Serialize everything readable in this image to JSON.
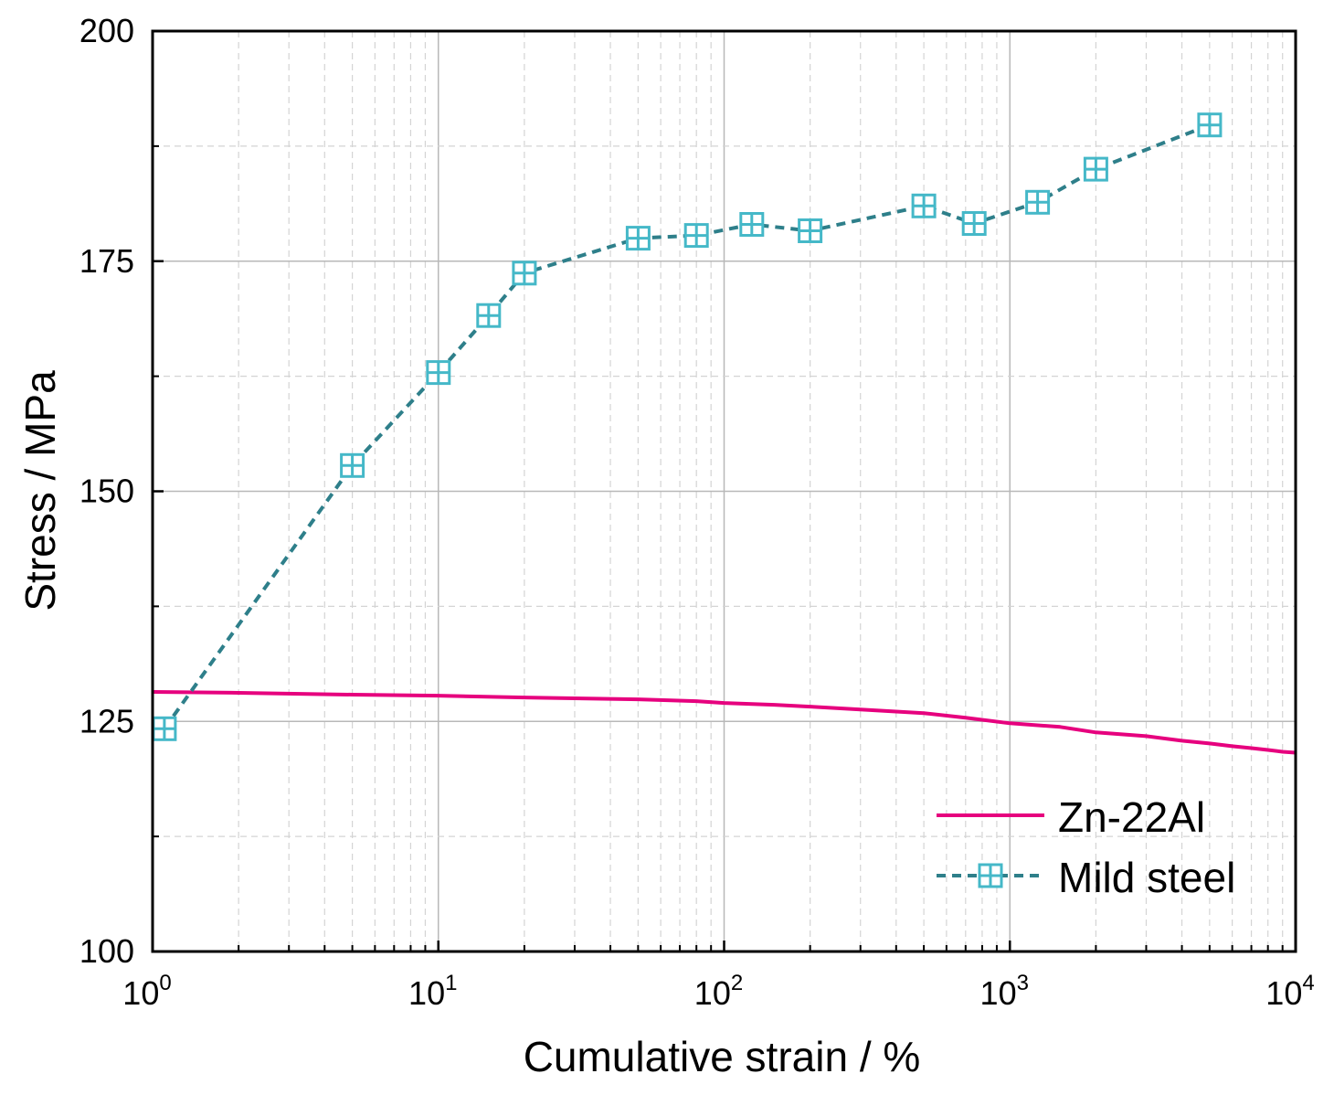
{
  "chart_data": {
    "type": "line",
    "xlabel": "Cumulative strain / %",
    "ylabel": "Stress / MPa",
    "xscale": "log",
    "xlim": [
      1,
      10000
    ],
    "ylim": [
      100,
      200
    ],
    "x_ticks": [
      {
        "base": "10",
        "exp": "0"
      },
      {
        "base": "10",
        "exp": "1"
      },
      {
        "base": "10",
        "exp": "2"
      },
      {
        "base": "10",
        "exp": "3"
      },
      {
        "base": "10",
        "exp": "4"
      }
    ],
    "y_ticks": [
      100,
      125,
      150,
      175,
      200
    ],
    "grid": true,
    "legend_position": "bottom-right",
    "series": [
      {
        "name": "Zn-22Al",
        "color": "#e6007e",
        "style": "solid",
        "marker": "none",
        "x": [
          1,
          2,
          5,
          10,
          20,
          50,
          80,
          100,
          150,
          200,
          300,
          500,
          700,
          1000,
          1500,
          2000,
          3000,
          4000,
          5000,
          6000,
          7000,
          8000,
          9000,
          10000
        ],
        "y": [
          128.2,
          128.1,
          127.9,
          127.8,
          127.6,
          127.4,
          127.2,
          127.0,
          126.8,
          126.6,
          126.3,
          125.9,
          125.4,
          124.8,
          124.4,
          123.8,
          123.4,
          122.9,
          122.6,
          122.3,
          122.1,
          121.9,
          121.7,
          121.6
        ]
      },
      {
        "name": "Mild steel",
        "color": "#45b8c8",
        "line_color": "#2e7f8a",
        "style": "dashed",
        "marker": "square-cross",
        "x": [
          1.1,
          5,
          10,
          15,
          20,
          50,
          80,
          125,
          200,
          500,
          750,
          1250,
          2000,
          5000
        ],
        "y": [
          124.2,
          152.8,
          162.9,
          169.1,
          173.7,
          177.5,
          177.8,
          179.0,
          178.3,
          181.0,
          179.1,
          181.4,
          185.0,
          189.8
        ]
      }
    ]
  }
}
